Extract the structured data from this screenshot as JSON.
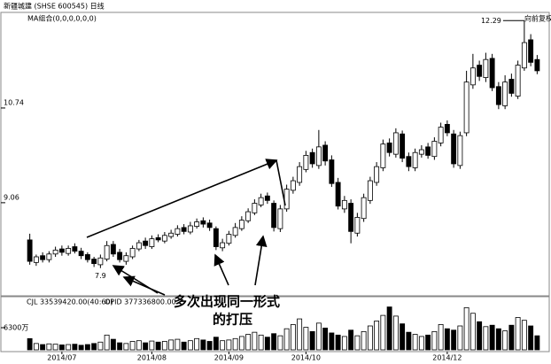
{
  "chart_data": {
    "type": "candlestick",
    "title": "新疆城建 (SHSE 600545) 日线",
    "subtitle": "MA组合(0,0,0,0,0,0)",
    "adjust_label": "向前复权",
    "indicator_labels": [
      "CJL 33539420.00(40:60)",
      "OPID 377336800.00"
    ],
    "annotation_lines": [
      "多次出现同一形式",
      "的打压"
    ],
    "categories": [
      null,
      null,
      null,
      null,
      null,
      "2014/07",
      null,
      null,
      null,
      null,
      null,
      null,
      null,
      null,
      null,
      null,
      null,
      null,
      null,
      "2014/08",
      null,
      null,
      null,
      null,
      null,
      null,
      null,
      null,
      null,
      null,
      null,
      "2014/09",
      null,
      null,
      null,
      null,
      null,
      null,
      null,
      null,
      null,
      null,
      null,
      "2014/10",
      null,
      null,
      null,
      null,
      null,
      null,
      null,
      null,
      null,
      null,
      null,
      null,
      null,
      null,
      null,
      null,
      null,
      null,
      null,
      null,
      null,
      "2014/12",
      null,
      null,
      null,
      null,
      null,
      null,
      null,
      null,
      null,
      null,
      null,
      null,
      null,
      null
    ],
    "open": [
      8.4,
      8.0,
      8.12,
      8.05,
      8.15,
      8.24,
      8.16,
      8.28,
      8.2,
      8.14,
      8.06,
      7.96,
      8.06,
      8.32,
      8.18,
      8.02,
      8.1,
      8.24,
      8.38,
      8.28,
      8.44,
      8.38,
      8.46,
      8.5,
      8.62,
      8.54,
      8.64,
      8.74,
      8.7,
      8.6,
      8.26,
      8.34,
      8.48,
      8.6,
      8.74,
      8.88,
      9.02,
      9.18,
      9.05,
      8.6,
      8.95,
      9.28,
      9.42,
      9.65,
      9.95,
      9.72,
      10.08,
      9.82,
      9.42,
      8.95,
      9.05,
      8.52,
      8.78,
      9.1,
      9.42,
      9.68,
      10.12,
      9.92,
      10.28,
      9.88,
      9.68,
      9.92,
      10.05,
      9.88,
      10.12,
      10.45,
      10.28,
      9.72,
      10.3,
      11.15,
      11.5,
      11.28,
      11.62,
      11.12,
      10.78,
      11.25,
      10.95,
      11.45,
      11.95,
      11.6
    ],
    "high": [
      8.51,
      8.14,
      8.18,
      8.2,
      8.28,
      8.3,
      8.3,
      8.34,
      8.26,
      8.18,
      8.1,
      8.14,
      8.38,
      8.38,
      8.24,
      8.18,
      8.3,
      8.4,
      8.44,
      8.48,
      8.5,
      8.54,
      8.58,
      8.66,
      8.68,
      8.72,
      8.78,
      8.8,
      8.76,
      8.64,
      8.42,
      8.56,
      8.7,
      8.82,
      8.96,
      9.12,
      9.22,
      9.24,
      9.1,
      9.02,
      9.38,
      9.52,
      9.78,
      9.98,
      10.02,
      10.35,
      10.15,
      9.9,
      9.5,
      9.18,
      9.12,
      8.88,
      9.22,
      9.52,
      9.78,
      10.18,
      10.2,
      10.38,
      10.34,
      9.95,
      10.02,
      10.08,
      10.12,
      10.22,
      10.48,
      10.52,
      10.35,
      10.32,
      11.4,
      11.7,
      11.58,
      11.72,
      11.7,
      11.2,
      11.32,
      11.35,
      11.58,
      12.29,
      12.05,
      11.68
    ],
    "low": [
      7.96,
      7.94,
      8.0,
      8.0,
      8.1,
      8.12,
      8.12,
      8.16,
      8.06,
      8.0,
      7.92,
      7.9,
      8.02,
      8.1,
      8.0,
      7.96,
      8.06,
      8.2,
      8.24,
      8.24,
      8.36,
      8.34,
      8.42,
      8.46,
      8.5,
      8.5,
      8.6,
      8.62,
      8.56,
      8.22,
      8.2,
      8.3,
      8.44,
      8.56,
      8.7,
      8.84,
      8.98,
      9.04,
      8.55,
      8.54,
      8.9,
      9.22,
      9.36,
      9.6,
      9.68,
      9.66,
      9.72,
      9.34,
      8.94,
      8.88,
      8.34,
      8.46,
      8.72,
      9.04,
      9.36,
      9.62,
      9.88,
      9.86,
      9.78,
      9.62,
      9.62,
      9.86,
      9.84,
      9.82,
      10.06,
      10.24,
      9.68,
      9.66,
      10.24,
      11.08,
      11.22,
      11.2,
      11.04,
      10.72,
      10.72,
      10.94,
      10.9,
      11.4,
      11.48,
      11.34
    ],
    "close": [
      8.02,
      8.1,
      8.05,
      8.15,
      8.22,
      8.18,
      8.25,
      8.2,
      8.12,
      8.05,
      7.98,
      8.08,
      8.3,
      8.15,
      8.05,
      8.12,
      8.25,
      8.35,
      8.3,
      8.42,
      8.4,
      8.48,
      8.52,
      8.6,
      8.55,
      8.65,
      8.72,
      8.68,
      8.62,
      8.28,
      8.35,
      8.5,
      8.62,
      8.75,
      8.9,
      9.05,
      9.15,
      9.1,
      8.62,
      8.95,
      9.3,
      9.45,
      9.7,
      9.9,
      9.75,
      10.05,
      9.8,
      9.4,
      9.0,
      9.1,
      8.55,
      8.8,
      9.15,
      9.45,
      9.7,
      10.1,
      9.95,
      10.3,
      9.85,
      9.7,
      9.95,
      10.0,
      9.9,
      10.15,
      10.4,
      10.3,
      9.75,
      10.25,
      11.2,
      11.45,
      11.3,
      11.6,
      11.1,
      10.8,
      11.2,
      11.0,
      11.5,
      11.9,
      11.55,
      11.4
    ],
    "volume": [
      3200,
      1800,
      1500,
      1700,
      1600,
      1400,
      1500,
      1600,
      1300,
      1500,
      1800,
      2200,
      4200,
      3000,
      2000,
      1800,
      2400,
      2600,
      2000,
      2500,
      2200,
      2400,
      2800,
      3000,
      2200,
      2600,
      3200,
      2800,
      2400,
      3600,
      2600,
      2800,
      3200,
      3800,
      4400,
      5000,
      4200,
      3600,
      4600,
      4000,
      6000,
      7200,
      8800,
      6400,
      5200,
      7600,
      6200,
      4800,
      4200,
      3800,
      5600,
      4000,
      5200,
      6800,
      8200,
      9800,
      12200,
      9600,
      7400,
      5000,
      4400,
      3800,
      4200,
      5200,
      7200,
      6000,
      5600,
      6800,
      12000,
      10400,
      8000,
      6600,
      7000,
      6000,
      5400,
      7000,
      9200,
      8400,
      6800,
      4000
    ],
    "ylim": [
      7.44,
      12.42
    ],
    "yticks": [
      9.06,
      10.74
    ],
    "volume_ylim": [
      0,
      12600
    ],
    "volume_ticks": [
      {
        "value": 6300,
        "label": "6300万"
      }
    ],
    "up_color": "#ffffff",
    "down_color": "#000000",
    "edge_color": "#000000"
  }
}
